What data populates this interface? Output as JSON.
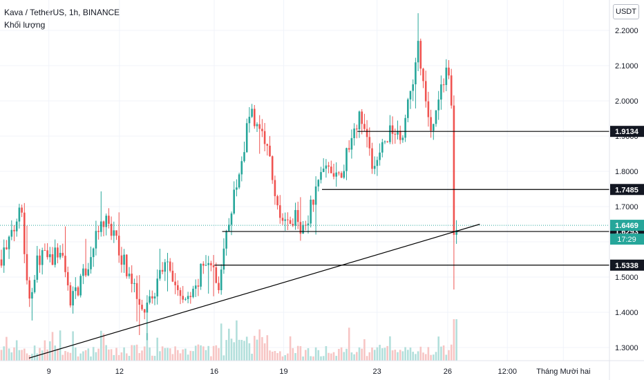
{
  "header": {
    "symbol": "Kava / TetherUS, 1h, BINANCE",
    "volume_label": "Khối lượng"
  },
  "currency_button": "USDT",
  "colors": {
    "up": "#26a69a",
    "down": "#ef5350",
    "up_volume": "#b2dfdb",
    "down_volume": "#f7c5c4",
    "level_line": "#000000",
    "trend_line": "#000000",
    "current_price_line": "#26a69a",
    "label_bg": "#131722",
    "grid": "#f0f3fa",
    "axis_text": "#131722"
  },
  "chart_data": {
    "type": "candlestick",
    "title": "Kava / TetherUS, 1h, BINANCE",
    "ylim": [
      1.26,
      2.25
    ],
    "y_ticks": [
      1.3,
      1.4,
      1.5,
      1.6,
      1.7,
      1.8,
      1.9,
      2.0,
      2.1,
      2.2
    ],
    "y_tick_labels": [
      "1.3000",
      "1.4000",
      "1.5000",
      "1.6000",
      "1.7000",
      "1.8000",
      "1.9000",
      "2.0000",
      "2.1000",
      "2.2000"
    ],
    "x_ticks": [
      {
        "label": "9",
        "pos": 0.0759
      },
      {
        "label": "12",
        "pos": 0.1855
      },
      {
        "label": "16",
        "pos": 0.3326
      },
      {
        "label": "19",
        "pos": 0.4405
      },
      {
        "label": "23",
        "pos": 0.5855
      },
      {
        "label": "26",
        "pos": 0.6952
      },
      {
        "label": "12:00",
        "pos": 0.7878
      },
      {
        "label": "Tháng Mười hai",
        "pos": 0.8748
      }
    ],
    "price_path": [
      [
        0.0,
        1.55
      ],
      [
        0.02,
        1.62
      ],
      [
        0.032,
        1.74
      ],
      [
        0.04,
        1.52
      ],
      [
        0.045,
        1.44
      ],
      [
        0.06,
        1.56
      ],
      [
        0.08,
        1.55
      ],
      [
        0.095,
        1.58
      ],
      [
        0.108,
        1.44
      ],
      [
        0.125,
        1.48
      ],
      [
        0.14,
        1.55
      ],
      [
        0.15,
        1.62
      ],
      [
        0.165,
        1.66
      ],
      [
        0.18,
        1.6
      ],
      [
        0.195,
        1.53
      ],
      [
        0.21,
        1.46
      ],
      [
        0.225,
        1.42
      ],
      [
        0.24,
        1.45
      ],
      [
        0.255,
        1.55
      ],
      [
        0.27,
        1.48
      ],
      [
        0.285,
        1.43
      ],
      [
        0.3,
        1.45
      ],
      [
        0.315,
        1.53
      ],
      [
        0.33,
        1.53
      ],
      [
        0.34,
        1.47
      ],
      [
        0.352,
        1.62
      ],
      [
        0.362,
        1.73
      ],
      [
        0.375,
        1.8
      ],
      [
        0.388,
        1.99
      ],
      [
        0.4,
        1.91
      ],
      [
        0.415,
        1.87
      ],
      [
        0.43,
        1.7
      ],
      [
        0.445,
        1.65
      ],
      [
        0.46,
        1.67
      ],
      [
        0.472,
        1.63
      ],
      [
        0.482,
        1.7
      ],
      [
        0.498,
        1.79
      ],
      [
        0.512,
        1.82
      ],
      [
        0.528,
        1.79
      ],
      [
        0.545,
        1.88
      ],
      [
        0.56,
        1.97
      ],
      [
        0.57,
        1.91
      ],
      [
        0.582,
        1.79
      ],
      [
        0.595,
        1.88
      ],
      [
        0.61,
        1.92
      ],
      [
        0.625,
        1.91
      ],
      [
        0.64,
        2.05
      ],
      [
        0.648,
        2.17
      ],
      [
        0.66,
        1.99
      ],
      [
        0.672,
        1.92
      ],
      [
        0.685,
        2.04
      ],
      [
        0.695,
        2.09
      ],
      [
        0.704,
        1.92
      ],
      [
        0.708,
        1.63
      ],
      [
        0.712,
        1.6
      ]
    ],
    "current_price": 1.6469,
    "countdown": "17:29",
    "horizontal_levels": [
      {
        "value": 1.9134,
        "label": "1.9134",
        "start": 0.555
      },
      {
        "value": 1.7485,
        "label": "1.7485",
        "start": 0.5
      },
      {
        "value": 1.6293,
        "label": "1.6293",
        "start": 0.345
      },
      {
        "value": 1.5338,
        "label": "1.5338",
        "start": 0.333
      }
    ],
    "trend_line": {
      "start": [
        0.045,
        1.27
      ],
      "end": [
        0.745,
        1.65
      ]
    },
    "volume_note": "Khối lượng"
  }
}
